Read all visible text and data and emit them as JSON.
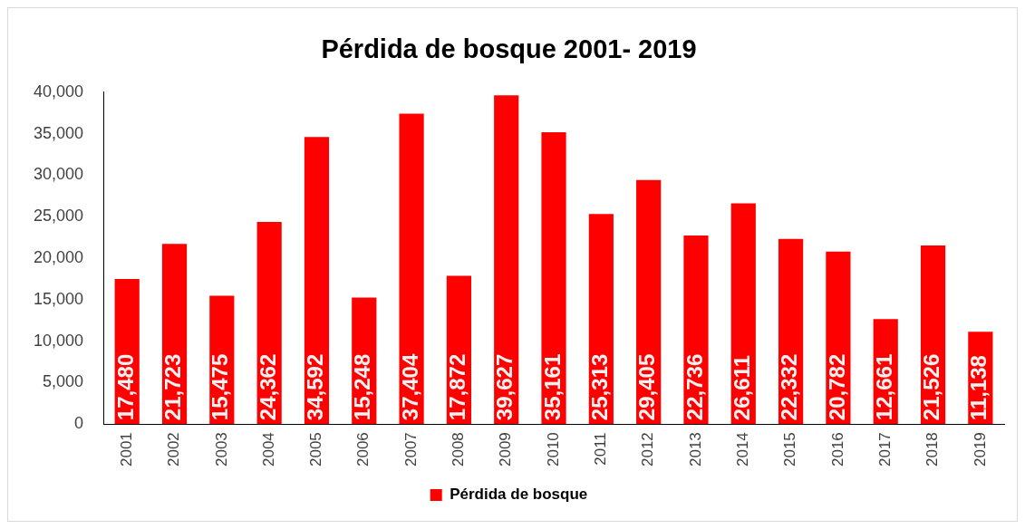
{
  "chart_data": {
    "type": "bar",
    "title": "Pérdida de bosque 2001- 2019",
    "categories": [
      "2001",
      "2002",
      "2003",
      "2004",
      "2005",
      "2006",
      "2007",
      "2008",
      "2009",
      "2010",
      "2011",
      "2012",
      "2013",
      "2014",
      "2015",
      "2016",
      "2017",
      "2018",
      "2019"
    ],
    "series": [
      {
        "name": "Pérdida de bosque",
        "color": "#ff0000",
        "values": [
          17480,
          21723,
          15475,
          24362,
          34592,
          15248,
          37404,
          17872,
          39627,
          35161,
          25313,
          29405,
          22736,
          26611,
          22332,
          20782,
          12661,
          21526,
          11138
        ],
        "value_labels": [
          "17,480",
          "21,723",
          "15,475",
          "24,362",
          "34,592",
          "15,248",
          "37,404",
          "17,872",
          "39,627",
          "35,161",
          "25,313",
          "29,405",
          "22,736",
          "26,611",
          "22,332",
          "20,782",
          "12,661",
          "21,526",
          "11,138"
        ]
      }
    ],
    "ylim": [
      0,
      40000
    ],
    "yticks": [
      {
        "value": 0,
        "label": "0"
      },
      {
        "value": 5000,
        "label": "5,000"
      },
      {
        "value": 10000,
        "label": "10,000"
      },
      {
        "value": 15000,
        "label": "15,000"
      },
      {
        "value": 20000,
        "label": "20,000"
      },
      {
        "value": 25000,
        "label": "25,000"
      },
      {
        "value": 30000,
        "label": "30,000"
      },
      {
        "value": 35000,
        "label": "35,000"
      },
      {
        "value": 40000,
        "label": "40,000"
      }
    ],
    "grid": false,
    "legend": "bottom"
  }
}
